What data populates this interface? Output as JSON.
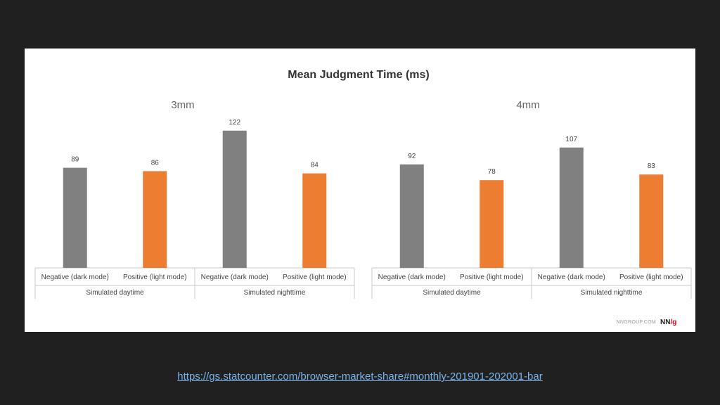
{
  "chart_data": {
    "type": "bar",
    "title": "Mean Judgment Time (ms)",
    "ylim": [
      0,
      130
    ],
    "grid": false,
    "legend": "none",
    "panels": [
      {
        "title": "3mm",
        "categories": [
          {
            "label": "Negative (dark mode)",
            "group": "Simulated daytime",
            "value": 89,
            "color": "#808080"
          },
          {
            "label": "Positive (light mode)",
            "group": "Simulated daytime",
            "value": 86,
            "color": "#ed7d31"
          },
          {
            "label": "Negative (dark mode)",
            "group": "Simulated nighttime",
            "value": 122,
            "color": "#808080"
          },
          {
            "label": "Positive (light mode)",
            "group": "Simulated nighttime",
            "value": 84,
            "color": "#ed7d31"
          }
        ],
        "groups": [
          "Simulated daytime",
          "Simulated nighttime"
        ]
      },
      {
        "title": "4mm",
        "categories": [
          {
            "label": "Negative (dark mode)",
            "group": "Simulated daytime",
            "value": 92,
            "color": "#808080"
          },
          {
            "label": "Positive (light mode)",
            "group": "Simulated daytime",
            "value": 78,
            "color": "#ed7d31"
          },
          {
            "label": "Negative (dark mode)",
            "group": "Simulated nighttime",
            "value": 107,
            "color": "#808080"
          },
          {
            "label": "Positive (light mode)",
            "group": "Simulated nighttime",
            "value": 83,
            "color": "#ed7d31"
          }
        ],
        "groups": [
          "Simulated daytime",
          "Simulated nighttime"
        ]
      }
    ]
  },
  "watermark": {
    "site": "NNGROUP.COM",
    "logo_nn": "NN",
    "logo_g": "/g"
  },
  "source_link": "https://gs.statcounter.com/browser-market-share#monthly-201901-202001-bar"
}
